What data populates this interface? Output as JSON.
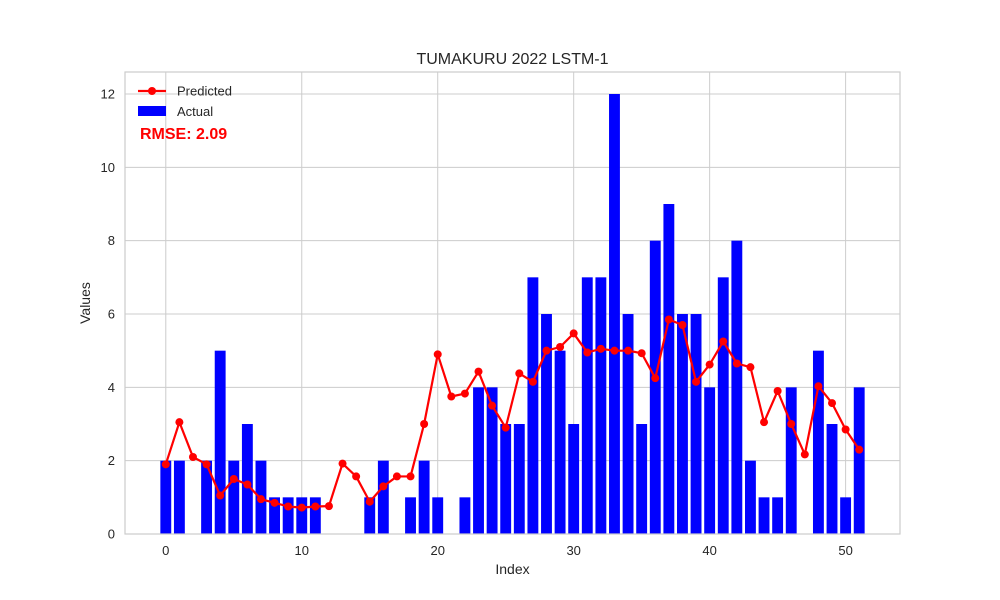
{
  "chart_data": {
    "type": "bar",
    "title": "TUMAKURU 2022 LSTM-1",
    "xlabel": "Index",
    "ylabel": "Values",
    "xlim": [
      -3,
      54
    ],
    "ylim": [
      0,
      12.6
    ],
    "xticks": [
      0,
      10,
      20,
      30,
      40,
      50
    ],
    "yticks": [
      0,
      2,
      4,
      6,
      8,
      10,
      12
    ],
    "grid": true,
    "legend_position": "top-left",
    "annotation": {
      "text": "RMSE: 2.09",
      "color": "#ff0000"
    },
    "series": [
      {
        "name": "Actual",
        "kind": "bar",
        "color": "#0000ff",
        "x": [
          0,
          1,
          2,
          3,
          4,
          5,
          6,
          7,
          8,
          9,
          10,
          11,
          12,
          13,
          14,
          15,
          16,
          17,
          18,
          19,
          20,
          21,
          22,
          23,
          24,
          25,
          26,
          27,
          28,
          29,
          30,
          31,
          32,
          33,
          34,
          35,
          36,
          37,
          38,
          39,
          40,
          41,
          42,
          43,
          44,
          45,
          46,
          47,
          48,
          49,
          50,
          51
        ],
        "values": [
          2,
          2,
          0,
          2,
          5,
          2,
          3,
          2,
          1,
          1,
          1,
          1,
          0,
          0,
          0,
          1,
          2,
          0,
          1,
          2,
          1,
          0,
          1,
          4,
          4,
          3,
          3,
          7,
          6,
          5,
          3,
          7,
          7,
          12,
          6,
          3,
          8,
          9,
          6,
          6,
          4,
          7,
          8,
          2,
          1,
          1,
          4,
          0,
          5,
          3,
          1,
          4
        ]
      },
      {
        "name": "Predicted",
        "kind": "line",
        "color": "#ff0000",
        "x": [
          0,
          1,
          2,
          3,
          4,
          5,
          6,
          7,
          8,
          9,
          10,
          11,
          12,
          13,
          14,
          15,
          16,
          17,
          18,
          19,
          20,
          21,
          22,
          23,
          24,
          25,
          26,
          27,
          28,
          29,
          30,
          31,
          32,
          33,
          34,
          35,
          36,
          37,
          38,
          39,
          40,
          41,
          42,
          43,
          44,
          45,
          46,
          47,
          48,
          49,
          50,
          51
        ],
        "values": [
          1.9,
          3.05,
          2.1,
          1.9,
          1.05,
          1.5,
          1.35,
          0.95,
          0.85,
          0.75,
          0.72,
          0.75,
          0.76,
          1.92,
          1.57,
          0.88,
          1.3,
          1.57,
          1.57,
          3.0,
          4.9,
          3.75,
          3.83,
          4.43,
          3.5,
          2.9,
          4.38,
          4.15,
          5.0,
          5.1,
          5.47,
          4.95,
          5.05,
          5.0,
          5.0,
          4.93,
          4.25,
          5.85,
          5.7,
          4.15,
          4.62,
          5.25,
          4.65,
          4.55,
          3.05,
          3.9,
          3.0,
          2.17,
          4.03,
          3.57,
          2.85,
          2.3
        ]
      }
    ]
  }
}
